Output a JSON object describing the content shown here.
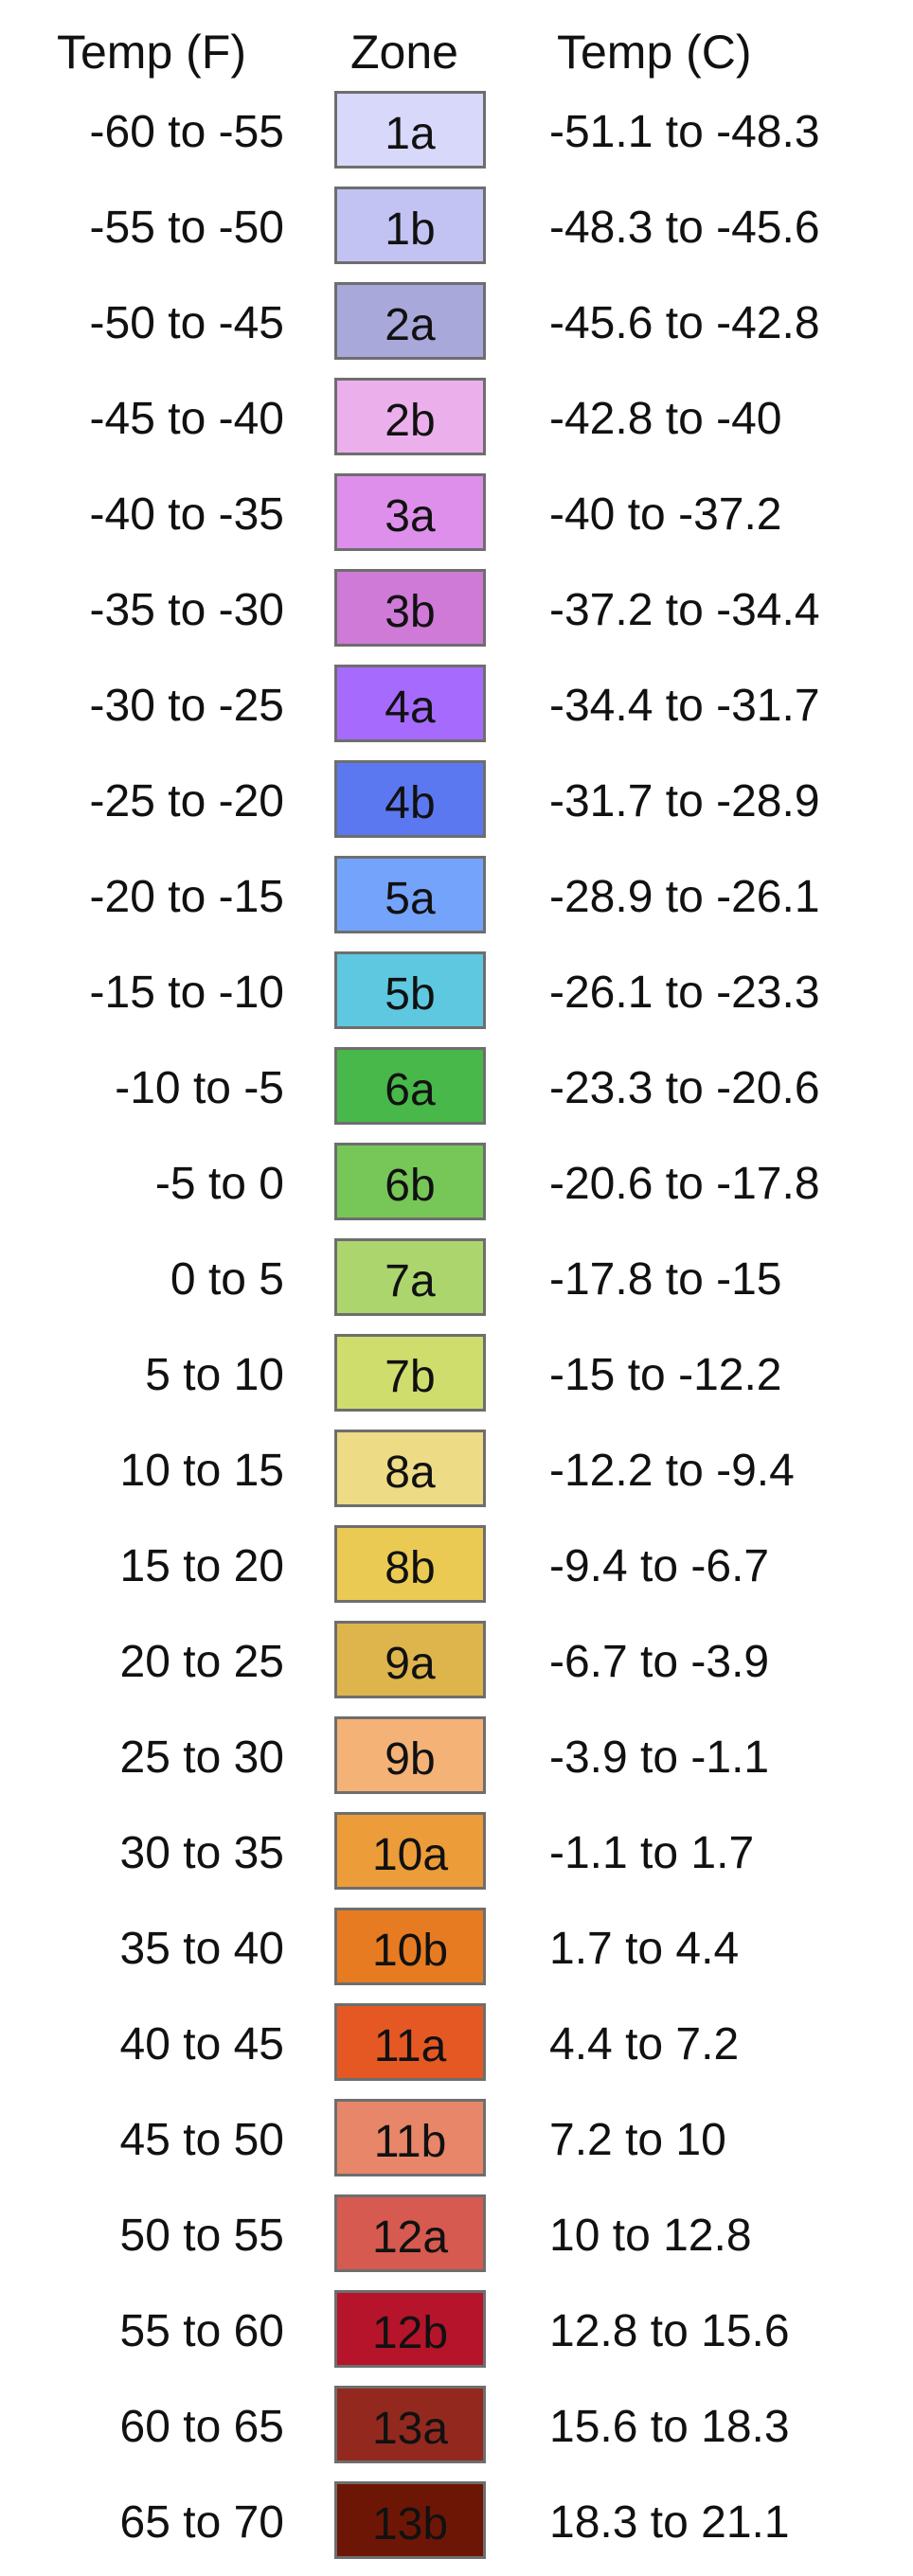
{
  "chart_data": {
    "type": "table",
    "columns": [
      "Temp (F)",
      "Zone",
      "Temp (C)"
    ],
    "rows": [
      {
        "f": "-60 to -55",
        "zone": "1a",
        "c": "-51.1 to -48.3",
        "color": "#d8d8fb"
      },
      {
        "f": "-55 to -50",
        "zone": "1b",
        "c": "-48.3 to -45.6",
        "color": "#c2c2f3"
      },
      {
        "f": "-50 to -45",
        "zone": "2a",
        "c": "-45.6 to -42.8",
        "color": "#a8a8da"
      },
      {
        "f": "-45 to -40",
        "zone": "2b",
        "c": "-42.8 to -40",
        "color": "#ebb0eb"
      },
      {
        "f": "-40 to -35",
        "zone": "3a",
        "c": "-40 to -37.2",
        "color": "#de8fec"
      },
      {
        "f": "-35 to -30",
        "zone": "3b",
        "c": "-37.2 to -34.4",
        "color": "#cf7ad7"
      },
      {
        "f": "-30 to -25",
        "zone": "4a",
        "c": "-34.4 to -31.7",
        "color": "#a66bfc"
      },
      {
        "f": "-25 to -20",
        "zone": "4b",
        "c": "-31.7 to -28.9",
        "color": "#5c78f0"
      },
      {
        "f": "-20 to -15",
        "zone": "5a",
        "c": "-28.9 to -26.1",
        "color": "#74a3fb"
      },
      {
        "f": "-15 to -10",
        "zone": "5b",
        "c": "-26.1 to -23.3",
        "color": "#5ec8e0"
      },
      {
        "f": "-10 to -5",
        "zone": "6a",
        "c": "-23.3 to -20.6",
        "color": "#47b849"
      },
      {
        "f": "-5 to 0",
        "zone": "6b",
        "c": "-20.6 to -17.8",
        "color": "#77c658"
      },
      {
        "f": "0 to 5",
        "zone": "7a",
        "c": "-17.8 to -15",
        "color": "#acd56e"
      },
      {
        "f": "5 to 10",
        "zone": "7b",
        "c": "-15 to -12.2",
        "color": "#cfdd6d"
      },
      {
        "f": "10 to 15",
        "zone": "8a",
        "c": "-12.2 to -9.4",
        "color": "#eddb85"
      },
      {
        "f": "15 to 20",
        "zone": "8b",
        "c": "-9.4 to -6.7",
        "color": "#eaca52"
      },
      {
        "f": "20 to 25",
        "zone": "9a",
        "c": "-6.7 to -3.9",
        "color": "#deb44d"
      },
      {
        "f": "25 to 30",
        "zone": "9b",
        "c": "-3.9 to -1.1",
        "color": "#f4b276"
      },
      {
        "f": "30 to 35",
        "zone": "10a",
        "c": "-1.1 to 1.7",
        "color": "#ec9c38"
      },
      {
        "f": "35 to 40",
        "zone": "10b",
        "c": "1.7 to 4.4",
        "color": "#e67b22"
      },
      {
        "f": "40 to 45",
        "zone": "11a",
        "c": "4.4 to 7.2",
        "color": "#e55824"
      },
      {
        "f": "45 to 50",
        "zone": "11b",
        "c": "7.2 to 10",
        "color": "#e8866a"
      },
      {
        "f": "50 to 55",
        "zone": "12a",
        "c": "10 to 12.8",
        "color": "#d65a4f"
      },
      {
        "f": "55 to 60",
        "zone": "12b",
        "c": "12.8 to 15.6",
        "color": "#b5142a"
      },
      {
        "f": "60 to 65",
        "zone": "13a",
        "c": "15.6 to 18.3",
        "color": "#93291e"
      },
      {
        "f": "65 to 70",
        "zone": "13b",
        "c": "18.3 to 21.1",
        "color": "#6e1605"
      }
    ]
  }
}
